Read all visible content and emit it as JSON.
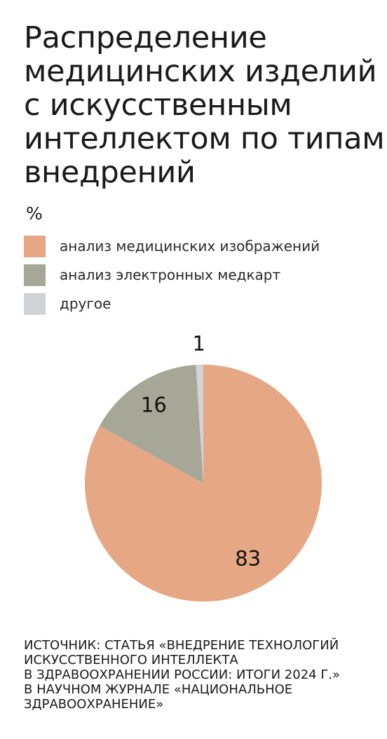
{
  "title_lines": [
    "Распределение",
    "медицинских изделий",
    "с искусственным",
    "интеллектом по типам",
    "внедрений"
  ],
  "unit": "%",
  "colors": {
    "medical_images": "#e6a884",
    "electronic_records": "#a6a796",
    "other": "#d2d3d5"
  },
  "chart_data": {
    "type": "pie",
    "title": "Распределение медицинских изделий с искусственным интеллектом по типам внедрений",
    "unit": "%",
    "legend_placement": "top-left",
    "slices": [
      {
        "label": "анализ медицинских изображений",
        "value": 83,
        "color": "#e6a884"
      },
      {
        "label": "анализ электронных медкарт",
        "value": 16,
        "color": "#a6a796"
      },
      {
        "label": "другое",
        "value": 1,
        "color": "#d2d3d5"
      }
    ]
  },
  "source_lines": [
    "ИСТОЧНИК: СТАТЬЯ «ВНЕДРЕНИЕ ТЕХНОЛОГИЙ",
    "ИСКУССТВЕННОГО ИНТЕЛЛЕКТА",
    "В ЗДРАВООХРАНЕНИИ РОССИИ: ИТОГИ 2024 Г.»",
    "В НАУЧНОМ ЖУРНАЛЕ «НАЦИОНАЛЬНОЕ",
    "ЗДРАВООХРАНЕНИЕ»"
  ]
}
